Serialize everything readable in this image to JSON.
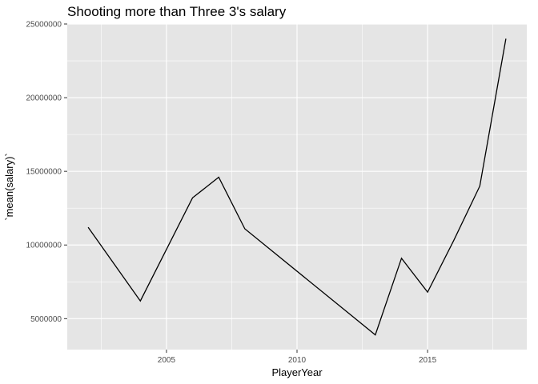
{
  "chart_data": {
    "type": "line",
    "title": "Shooting more than Three 3's salary",
    "xlabel": "PlayerYear",
    "ylabel": "`mean(salary)`",
    "x": [
      2002,
      2004,
      2006,
      2007,
      2008,
      2013,
      2014,
      2015,
      2016,
      2017,
      2018
    ],
    "y": [
      11200000,
      6200000,
      13200000,
      14600000,
      11100000,
      3900000,
      9100000,
      6800000,
      10300000,
      14000000,
      24000000
    ],
    "xlim": [
      2001.2,
      2018.8
    ],
    "ylim": [
      2900000,
      25000000
    ],
    "x_ticks": [
      2005,
      2010,
      2015
    ],
    "x_tick_labels": [
      "2005",
      "2010",
      "2015"
    ],
    "y_ticks": [
      5000000,
      10000000,
      15000000,
      20000000,
      25000000
    ],
    "y_tick_labels": [
      "5000000",
      "10000000",
      "15000000",
      "20000000",
      "25000000"
    ],
    "grid": true,
    "colors": {
      "panel": "#e5e5e5",
      "grid": "#ffffff",
      "line": "#000000"
    }
  }
}
